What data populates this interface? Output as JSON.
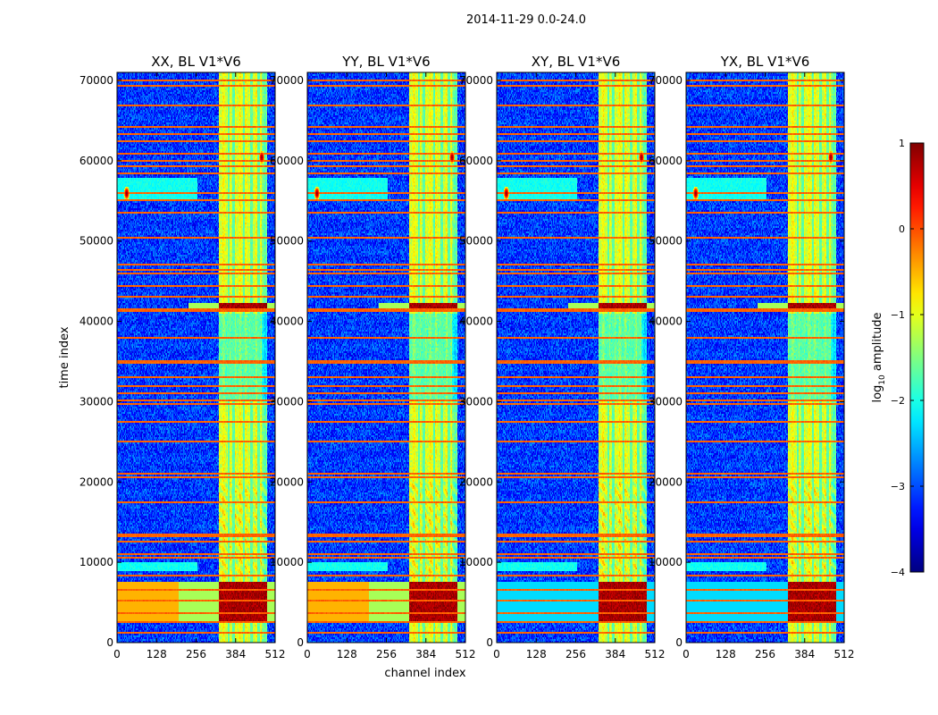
{
  "figure": {
    "suptitle": "2014-11-29 0.0-24.0"
  },
  "chart_data": {
    "type": "heatmap",
    "shared_xlabel": "channel index",
    "shared_ylabel": "time index",
    "xlim": [
      0,
      512
    ],
    "ylim": [
      0,
      71000
    ],
    "xticks": [
      0,
      128,
      256,
      384,
      512
    ],
    "yticks": [
      0,
      10000,
      20000,
      30000,
      40000,
      50000,
      60000,
      70000
    ],
    "panels": [
      {
        "title": "XX, BL V1*V6",
        "product": "XX"
      },
      {
        "title": "YY, BL V1*V6",
        "product": "YY"
      },
      {
        "title": "XY, BL V1*V6",
        "product": "XY"
      },
      {
        "title": "YX, BL V1*V6",
        "product": "YX"
      }
    ],
    "structure": {
      "signal_band_channels": [
        330,
        488
      ],
      "strong_band_channels": [
        330,
        470
      ],
      "vertical_gap_channels": [
        362,
        378,
        412,
        436,
        460
      ],
      "flagged_rows": [
        1200,
        2500,
        3500,
        5200,
        6400,
        8200,
        10400,
        10900,
        12600,
        13200,
        13500,
        17500,
        20500,
        21000,
        25000,
        27500,
        29600,
        30100,
        31000,
        32000,
        33000,
        34800,
        35100,
        38000,
        41200,
        41600,
        43000,
        44500,
        46000,
        46500,
        47200,
        50500,
        53500,
        55200,
        56000,
        58500,
        59300,
        60000,
        61000,
        62500,
        63500,
        64200,
        67000,
        69500,
        70200
      ],
      "high_band_rows": [
        [
          2500,
          7500
        ],
        [
          41500,
          42300
        ]
      ],
      "rfi_spots": [
        {
          "channel": 30,
          "time": 56000
        },
        {
          "channel": 470,
          "time": 60500
        }
      ],
      "low_hazes": [
        [
          8800,
          10000
        ],
        [
          55000,
          58000
        ]
      ]
    },
    "colorbar": {
      "label_prefix": "log",
      "label_subscript": "10",
      "label_suffix": " amplitude",
      "range": [
        -4,
        1
      ],
      "ticks": [
        1,
        0,
        -1,
        -2,
        -3,
        -4
      ],
      "tick_labels": [
        "1",
        "0",
        "−1",
        "−2",
        "−3",
        "−4"
      ],
      "colormap": "jet"
    }
  }
}
